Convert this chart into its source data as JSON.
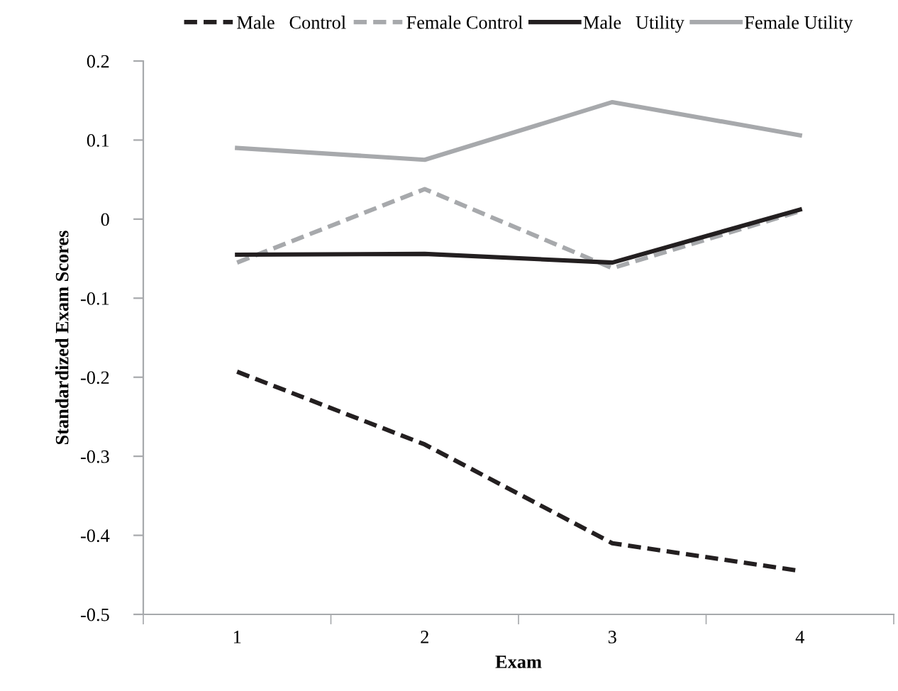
{
  "chart_data": {
    "type": "line",
    "xlabel": "Exam",
    "ylabel": "Standardized Exam Scores",
    "categories": [
      "1",
      "2",
      "3",
      "4"
    ],
    "series": [
      {
        "name": "Male   Control",
        "color": "#231f20",
        "line_style": "dashed",
        "values": [
          -0.193,
          -0.285,
          -0.41,
          -0.445
        ]
      },
      {
        "name": "Female Control",
        "color": "#a7a9ac",
        "line_style": "dashed",
        "values": [
          -0.055,
          0.038,
          -0.062,
          0.01
        ]
      },
      {
        "name": "Male   Utility",
        "color": "#231f20",
        "line_style": "solid",
        "values": [
          -0.045,
          -0.044,
          -0.055,
          0.012
        ]
      },
      {
        "name": "Female Utility",
        "color": "#a7a9ac",
        "line_style": "solid",
        "values": [
          0.09,
          0.075,
          0.148,
          0.106
        ]
      }
    ],
    "ylim": [
      -0.5,
      0.2
    ],
    "yticks": [
      {
        "value": -0.5,
        "label": "-0.5"
      },
      {
        "value": -0.4,
        "label": "-0.4"
      },
      {
        "value": -0.3,
        "label": "-0.3"
      },
      {
        "value": -0.2,
        "label": "-0.2"
      },
      {
        "value": -0.1,
        "label": "-0.1"
      },
      0,
      0.1,
      0.2
    ],
    "grid": false,
    "legend": "top",
    "marker": "none"
  }
}
